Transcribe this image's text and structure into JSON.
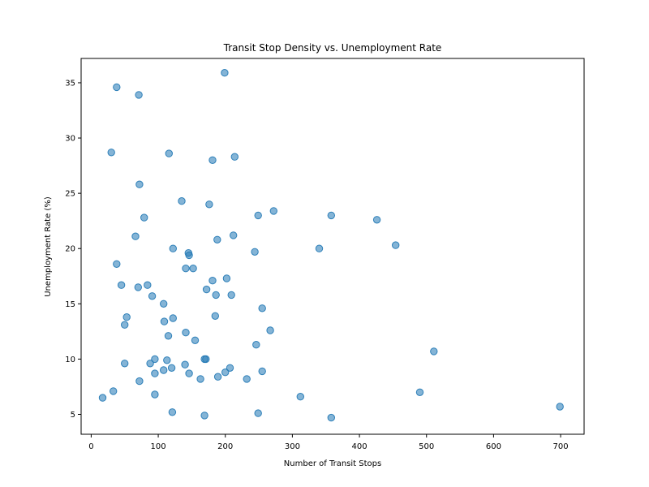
{
  "chart_data": {
    "type": "scatter",
    "title": "Transit Stop Density vs. Unemployment Rate",
    "xlabel": "Number of Transit Stops",
    "ylabel": "Unemployment Rate (%)",
    "xlim": [
      -15,
      735
    ],
    "ylim": [
      3.2,
      37.2
    ],
    "xticks": [
      0,
      100,
      200,
      300,
      400,
      500,
      600,
      700
    ],
    "yticks": [
      5,
      10,
      15,
      20,
      25,
      30,
      35
    ],
    "grid": false,
    "marker_color": "#1f77b4",
    "marker_alpha": 0.55,
    "points": [
      {
        "x": 38,
        "y": 34.6
      },
      {
        "x": 71,
        "y": 33.9
      },
      {
        "x": 199,
        "y": 35.9
      },
      {
        "x": 30,
        "y": 28.7
      },
      {
        "x": 116,
        "y": 28.6
      },
      {
        "x": 181,
        "y": 28.0
      },
      {
        "x": 214,
        "y": 28.3
      },
      {
        "x": 72,
        "y": 25.8
      },
      {
        "x": 135,
        "y": 24.3
      },
      {
        "x": 176,
        "y": 24.0
      },
      {
        "x": 79,
        "y": 22.8
      },
      {
        "x": 249,
        "y": 23.0
      },
      {
        "x": 272,
        "y": 23.4
      },
      {
        "x": 358,
        "y": 23.0
      },
      {
        "x": 426,
        "y": 22.6
      },
      {
        "x": 66,
        "y": 21.1
      },
      {
        "x": 188,
        "y": 20.8
      },
      {
        "x": 212,
        "y": 21.2
      },
      {
        "x": 122,
        "y": 20.0
      },
      {
        "x": 340,
        "y": 20.0
      },
      {
        "x": 454,
        "y": 20.3
      },
      {
        "x": 145,
        "y": 19.6
      },
      {
        "x": 146,
        "y": 19.4
      },
      {
        "x": 244,
        "y": 19.7
      },
      {
        "x": 38,
        "y": 18.6
      },
      {
        "x": 141,
        "y": 18.2
      },
      {
        "x": 152,
        "y": 18.2
      },
      {
        "x": 181,
        "y": 17.1
      },
      {
        "x": 202,
        "y": 17.3
      },
      {
        "x": 45,
        "y": 16.7
      },
      {
        "x": 70,
        "y": 16.5
      },
      {
        "x": 84,
        "y": 16.7
      },
      {
        "x": 172,
        "y": 16.3
      },
      {
        "x": 91,
        "y": 15.7
      },
      {
        "x": 186,
        "y": 15.8
      },
      {
        "x": 209,
        "y": 15.8
      },
      {
        "x": 108,
        "y": 15.0
      },
      {
        "x": 255,
        "y": 14.6
      },
      {
        "x": 53,
        "y": 13.8
      },
      {
        "x": 109,
        "y": 13.4
      },
      {
        "x": 122,
        "y": 13.7
      },
      {
        "x": 185,
        "y": 13.9
      },
      {
        "x": 50,
        "y": 13.1
      },
      {
        "x": 141,
        "y": 12.4
      },
      {
        "x": 115,
        "y": 12.1
      },
      {
        "x": 155,
        "y": 11.7
      },
      {
        "x": 267,
        "y": 12.6
      },
      {
        "x": 246,
        "y": 11.3
      },
      {
        "x": 511,
        "y": 10.7
      },
      {
        "x": 95,
        "y": 10.0
      },
      {
        "x": 113,
        "y": 9.9
      },
      {
        "x": 169,
        "y": 10.0
      },
      {
        "x": 171,
        "y": 10.0
      },
      {
        "x": 50,
        "y": 9.6
      },
      {
        "x": 88,
        "y": 9.6
      },
      {
        "x": 140,
        "y": 9.5
      },
      {
        "x": 108,
        "y": 9.0
      },
      {
        "x": 120,
        "y": 9.2
      },
      {
        "x": 207,
        "y": 9.2
      },
      {
        "x": 255,
        "y": 8.9
      },
      {
        "x": 95,
        "y": 8.7
      },
      {
        "x": 146,
        "y": 8.7
      },
      {
        "x": 200,
        "y": 8.8
      },
      {
        "x": 189,
        "y": 8.4
      },
      {
        "x": 163,
        "y": 8.2
      },
      {
        "x": 232,
        "y": 8.2
      },
      {
        "x": 72,
        "y": 8.0
      },
      {
        "x": 33,
        "y": 7.1
      },
      {
        "x": 17,
        "y": 6.5
      },
      {
        "x": 95,
        "y": 6.8
      },
      {
        "x": 312,
        "y": 6.6
      },
      {
        "x": 490,
        "y": 7.0
      },
      {
        "x": 699,
        "y": 5.7
      },
      {
        "x": 121,
        "y": 5.2
      },
      {
        "x": 169,
        "y": 4.9
      },
      {
        "x": 249,
        "y": 5.1
      },
      {
        "x": 358,
        "y": 4.7
      }
    ]
  }
}
